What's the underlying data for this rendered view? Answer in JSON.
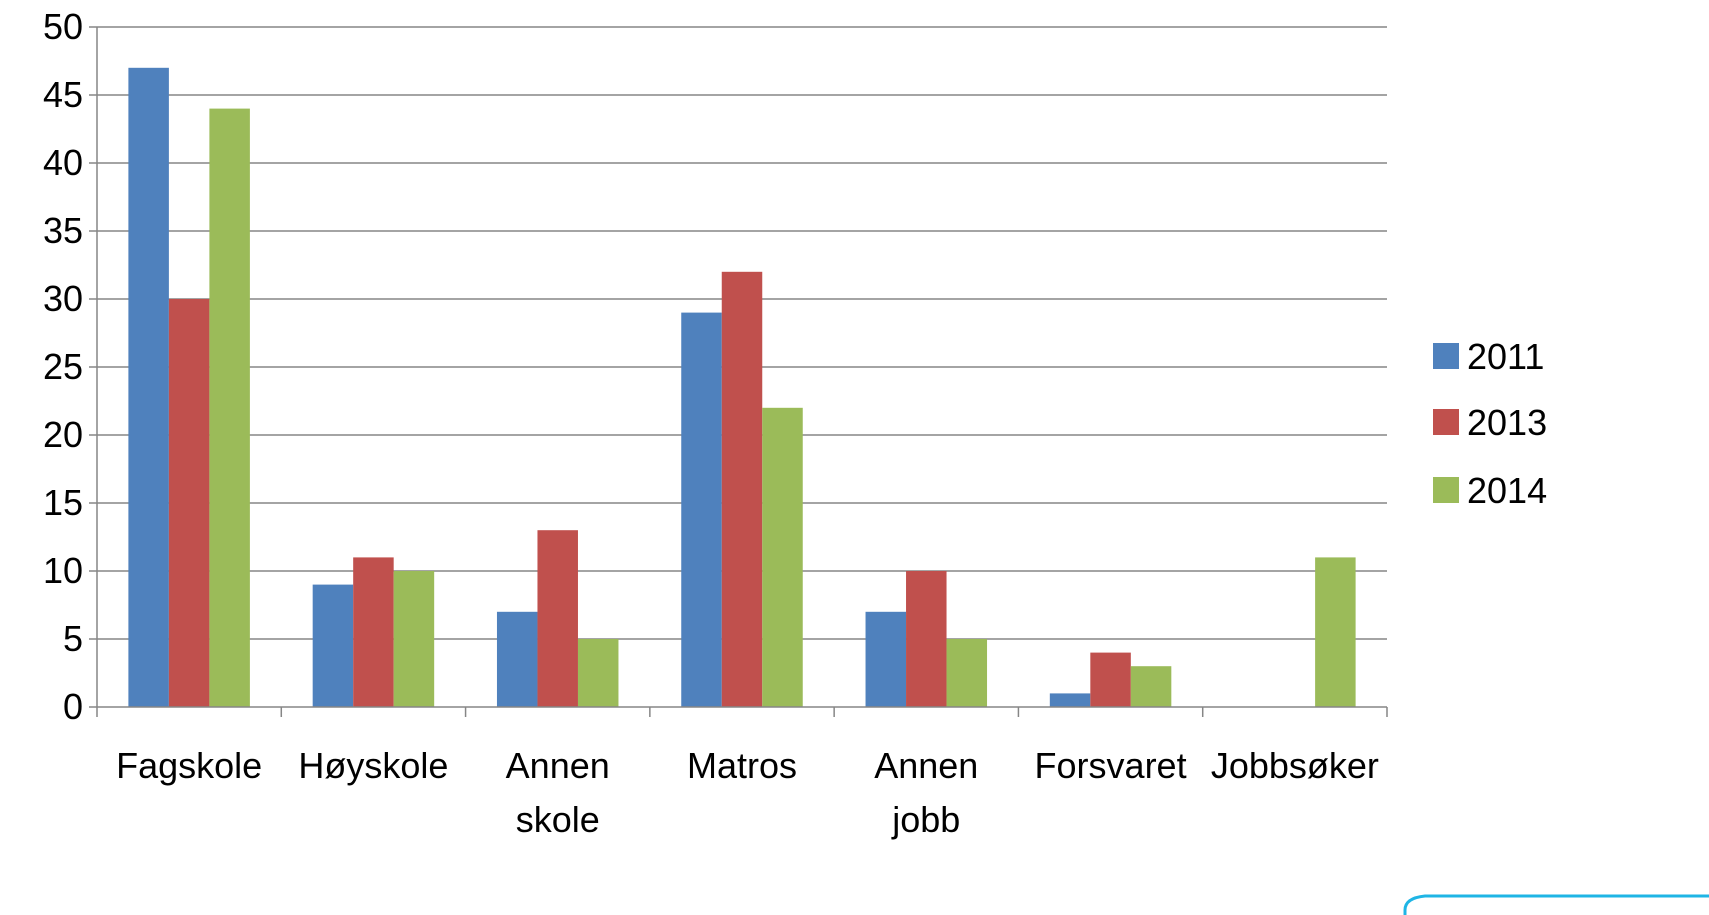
{
  "chart_data": {
    "type": "bar",
    "categories": [
      "Fagskole",
      "Høyskole",
      "Annen skole",
      "Matros",
      "Annen jobb",
      "Forsvaret",
      "Jobbsøker"
    ],
    "category_label_lines": [
      [
        "Fagskole"
      ],
      [
        "Høyskole"
      ],
      [
        "Annen",
        "skole"
      ],
      [
        "Matros"
      ],
      [
        "Annen",
        "jobb"
      ],
      [
        "Forsvaret"
      ],
      [
        "Jobbsøker"
      ]
    ],
    "series": [
      {
        "name": "2011",
        "color": "#4F81BD",
        "values": [
          47,
          9,
          7,
          29,
          7,
          1,
          0
        ]
      },
      {
        "name": "2013",
        "color": "#C0504D",
        "values": [
          30,
          11,
          13,
          32,
          10,
          4,
          0
        ]
      },
      {
        "name": "2014",
        "color": "#9BBB59",
        "values": [
          44,
          10,
          5,
          22,
          5,
          3,
          11
        ]
      }
    ],
    "title": "",
    "xlabel": "",
    "ylabel": "",
    "ylim": [
      0,
      50
    ],
    "yticks": [
      0,
      5,
      10,
      15,
      20,
      25,
      30,
      35,
      40,
      45,
      50
    ],
    "grid": true,
    "legend": "right"
  },
  "decoration": {
    "corner_shape_color": "#1FB5E5"
  }
}
